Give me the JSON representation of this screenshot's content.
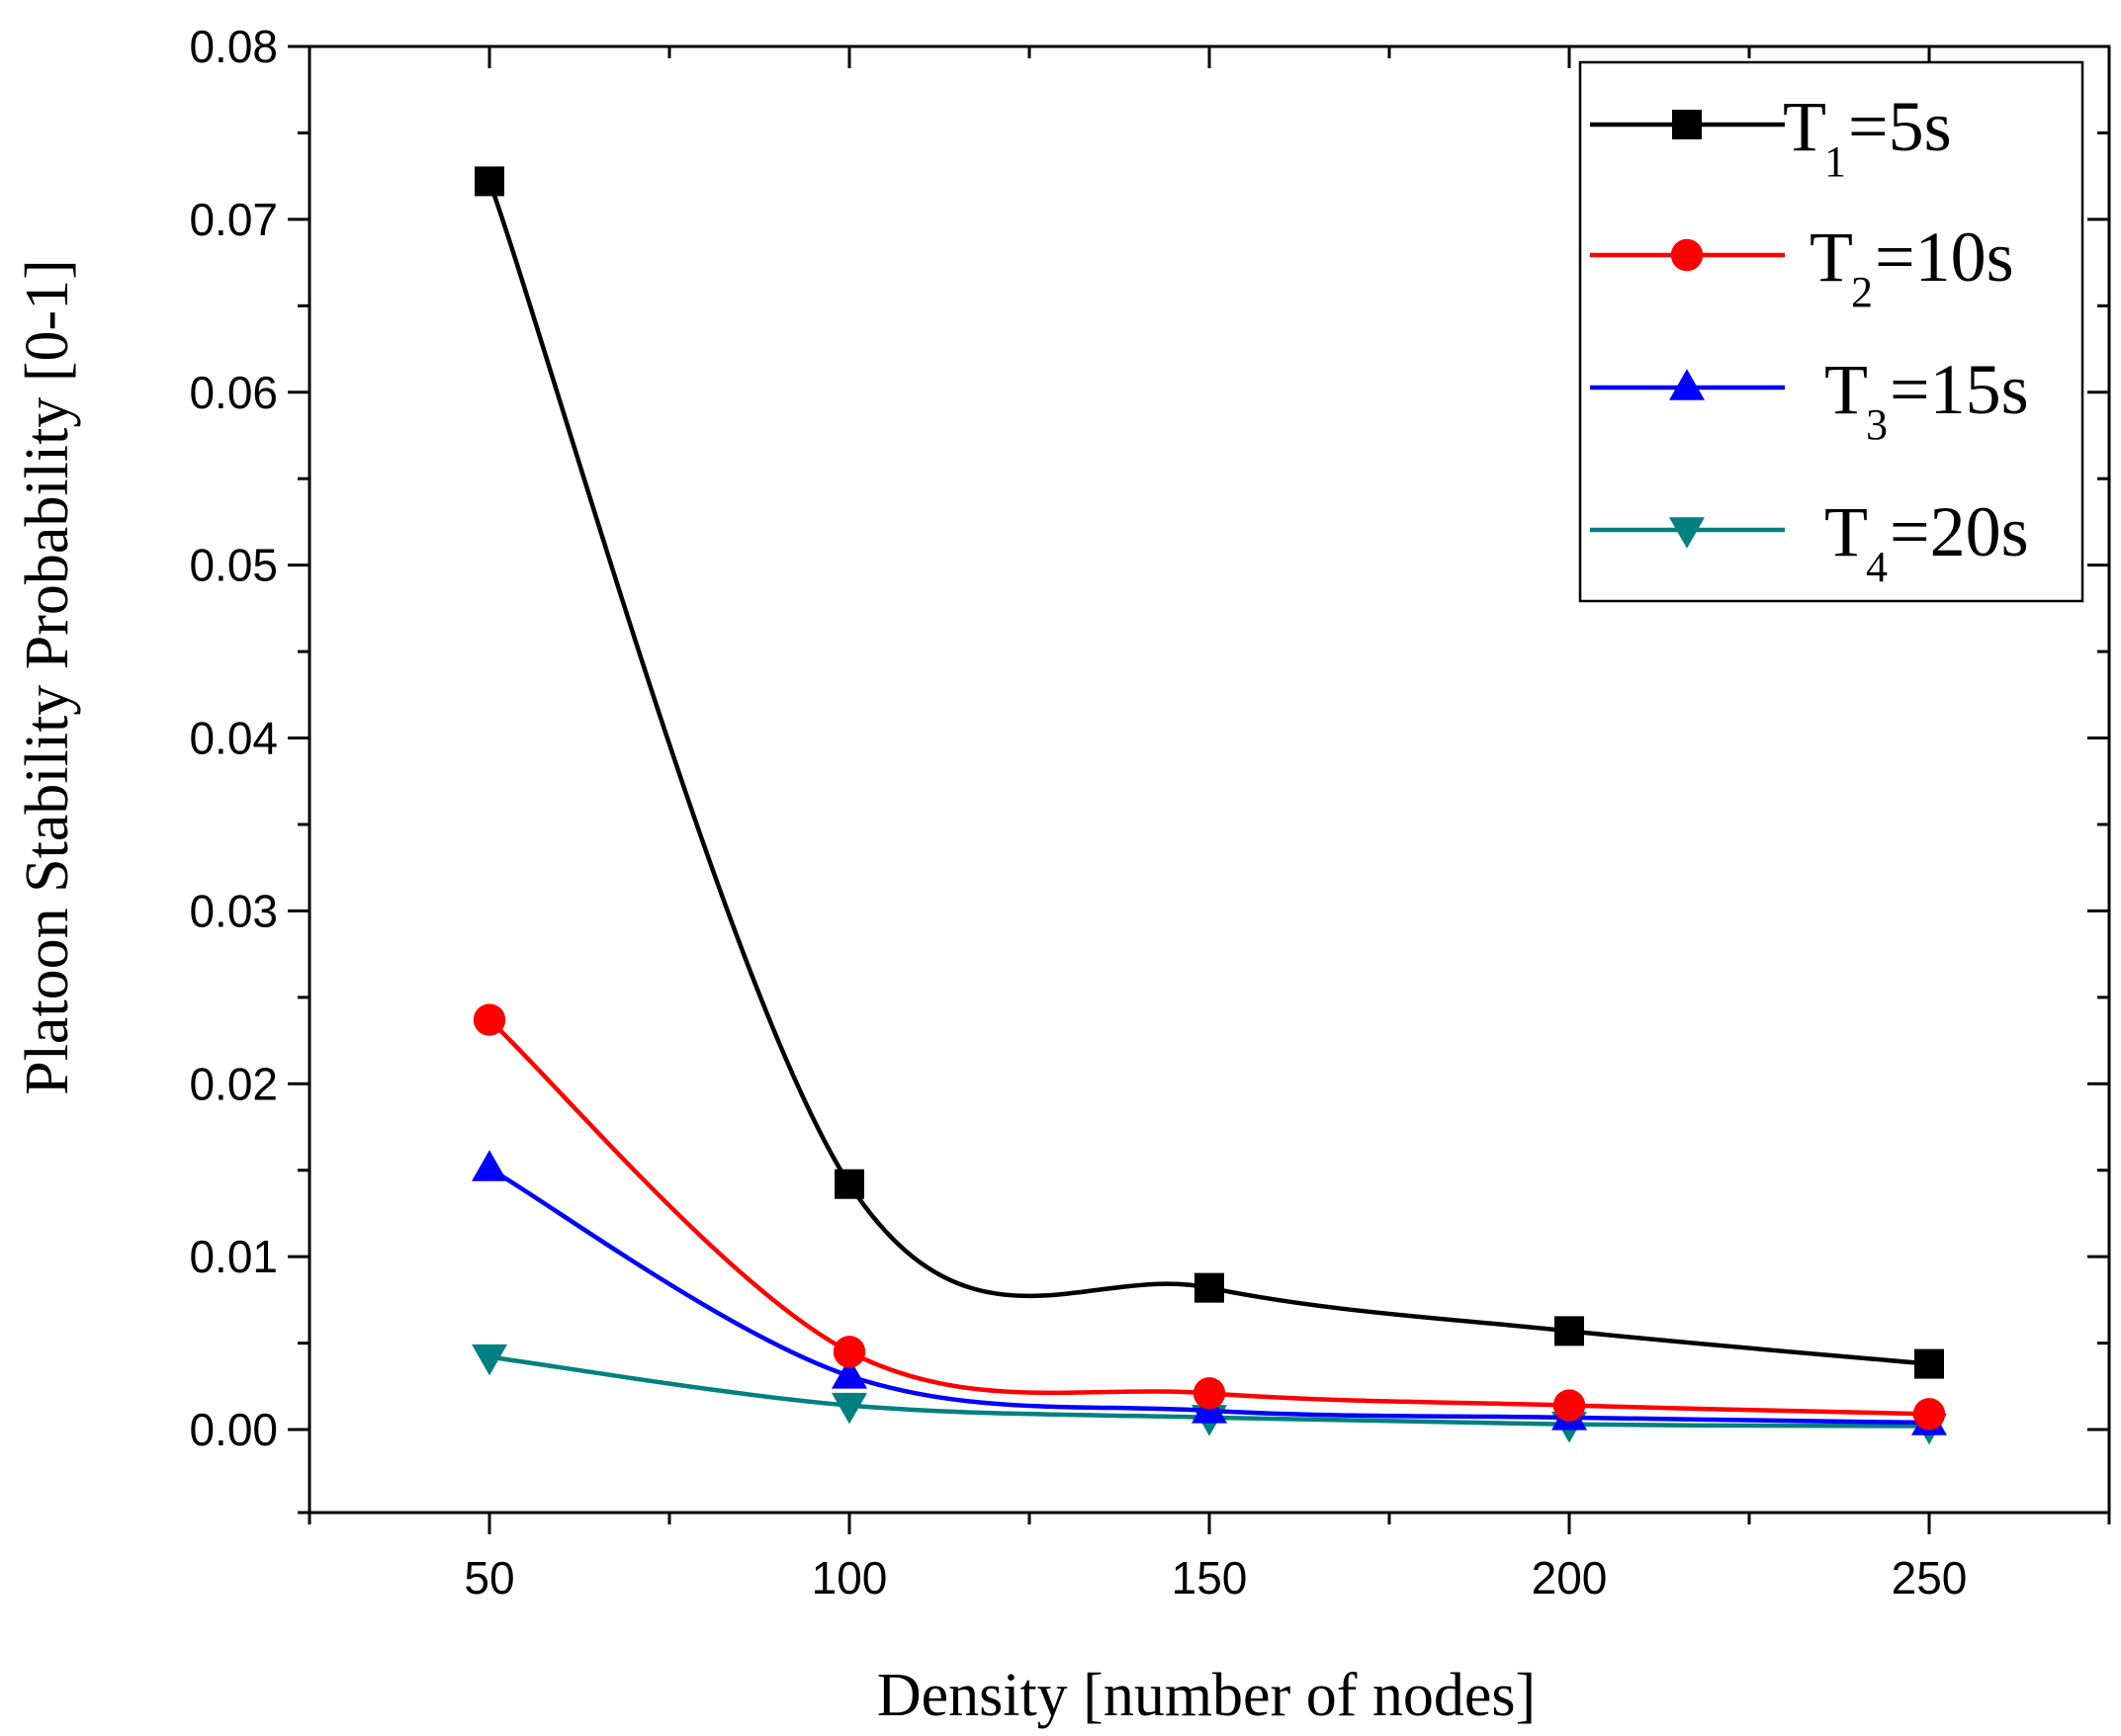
{
  "chart_data": {
    "type": "line",
    "title": "",
    "xlabel": "Density [number of nodes]",
    "ylabel": "Platoon Stability Probability [0-1]",
    "x": [
      50,
      100,
      150,
      200,
      250
    ],
    "xlim": [
      25,
      275
    ],
    "ylim": [
      -0.0048,
      0.08
    ],
    "xticks": [
      50,
      100,
      150,
      200,
      250
    ],
    "xtick_labels": [
      "50",
      "100",
      "150",
      "200",
      "250"
    ],
    "yticks": [
      0.0,
      0.01,
      0.02,
      0.03,
      0.04,
      0.05,
      0.06,
      0.07,
      0.08
    ],
    "ytick_labels": [
      "0.00",
      "0.01",
      "0.02",
      "0.03",
      "0.04",
      "0.05",
      "0.06",
      "0.07",
      "0.08"
    ],
    "grid": false,
    "legend_position": "top-right",
    "series": [
      {
        "name": "T1=5s",
        "label_main": "T",
        "label_sub": "1",
        "label_rest": "=5s",
        "color": "#000000",
        "marker": "square",
        "values": [
          0.0722,
          0.0142,
          0.0082,
          0.0057,
          0.0038
        ]
      },
      {
        "name": "T2=10s",
        "label_main": "T",
        "label_sub": "2",
        "label_rest": "=10s",
        "color": "#ff0000",
        "marker": "circle",
        "values": [
          0.0237,
          0.0045,
          0.0021,
          0.0014,
          0.0009
        ]
      },
      {
        "name": "T3=15s",
        "label_main": "T",
        "label_sub": "3",
        "label_rest": "=15s",
        "color": "#0000ff",
        "marker": "triangle-up",
        "values": [
          0.0151,
          0.0031,
          0.0011,
          0.0007,
          0.0004
        ]
      },
      {
        "name": "T4=20s",
        "label_main": "T",
        "label_sub": "4",
        "label_rest": "=20s",
        "color": "#008080",
        "marker": "triangle-down",
        "values": [
          0.0042,
          0.0014,
          0.0007,
          0.0003,
          0.0002
        ]
      }
    ]
  }
}
